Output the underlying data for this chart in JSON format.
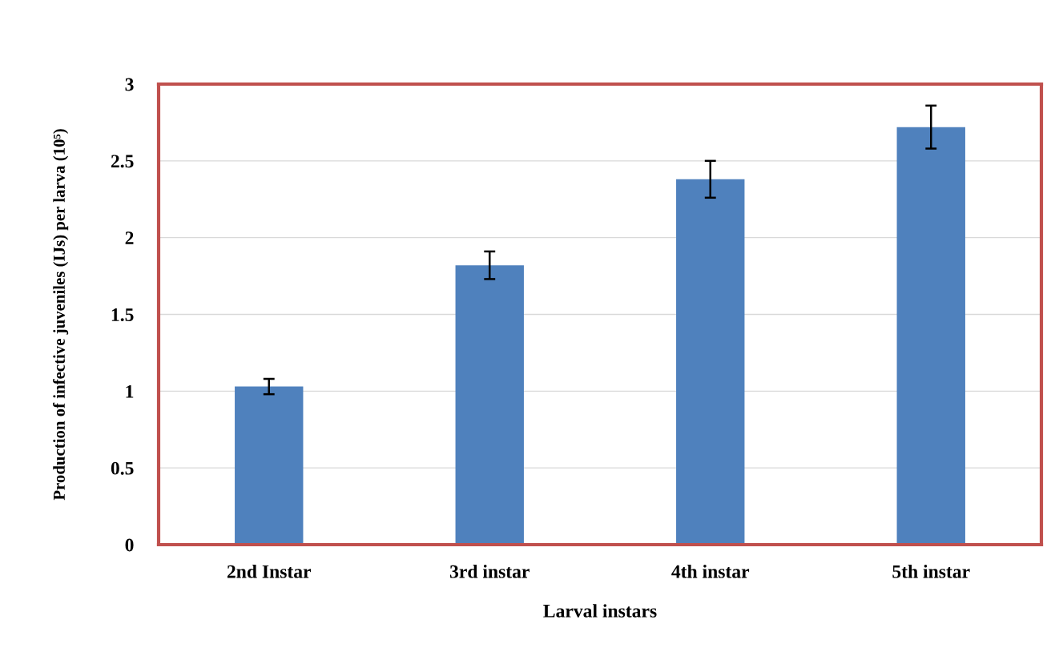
{
  "chart_data": {
    "type": "bar",
    "xlabel": "Larval instars",
    "ylabel": "Production of infective juveniles (IJs) per larva (10⁵)",
    "categories": [
      "2nd Instar",
      "3rd instar",
      "4th instar",
      "5th instar"
    ],
    "values": [
      1.03,
      1.82,
      2.38,
      2.72
    ],
    "errors": [
      0.05,
      0.09,
      0.12,
      0.14
    ],
    "color": "#4f81bd",
    "ylim": [
      0,
      3
    ],
    "yticks": [
      0,
      0.5,
      1,
      1.5,
      2,
      2.5,
      3
    ],
    "grid": "y"
  }
}
